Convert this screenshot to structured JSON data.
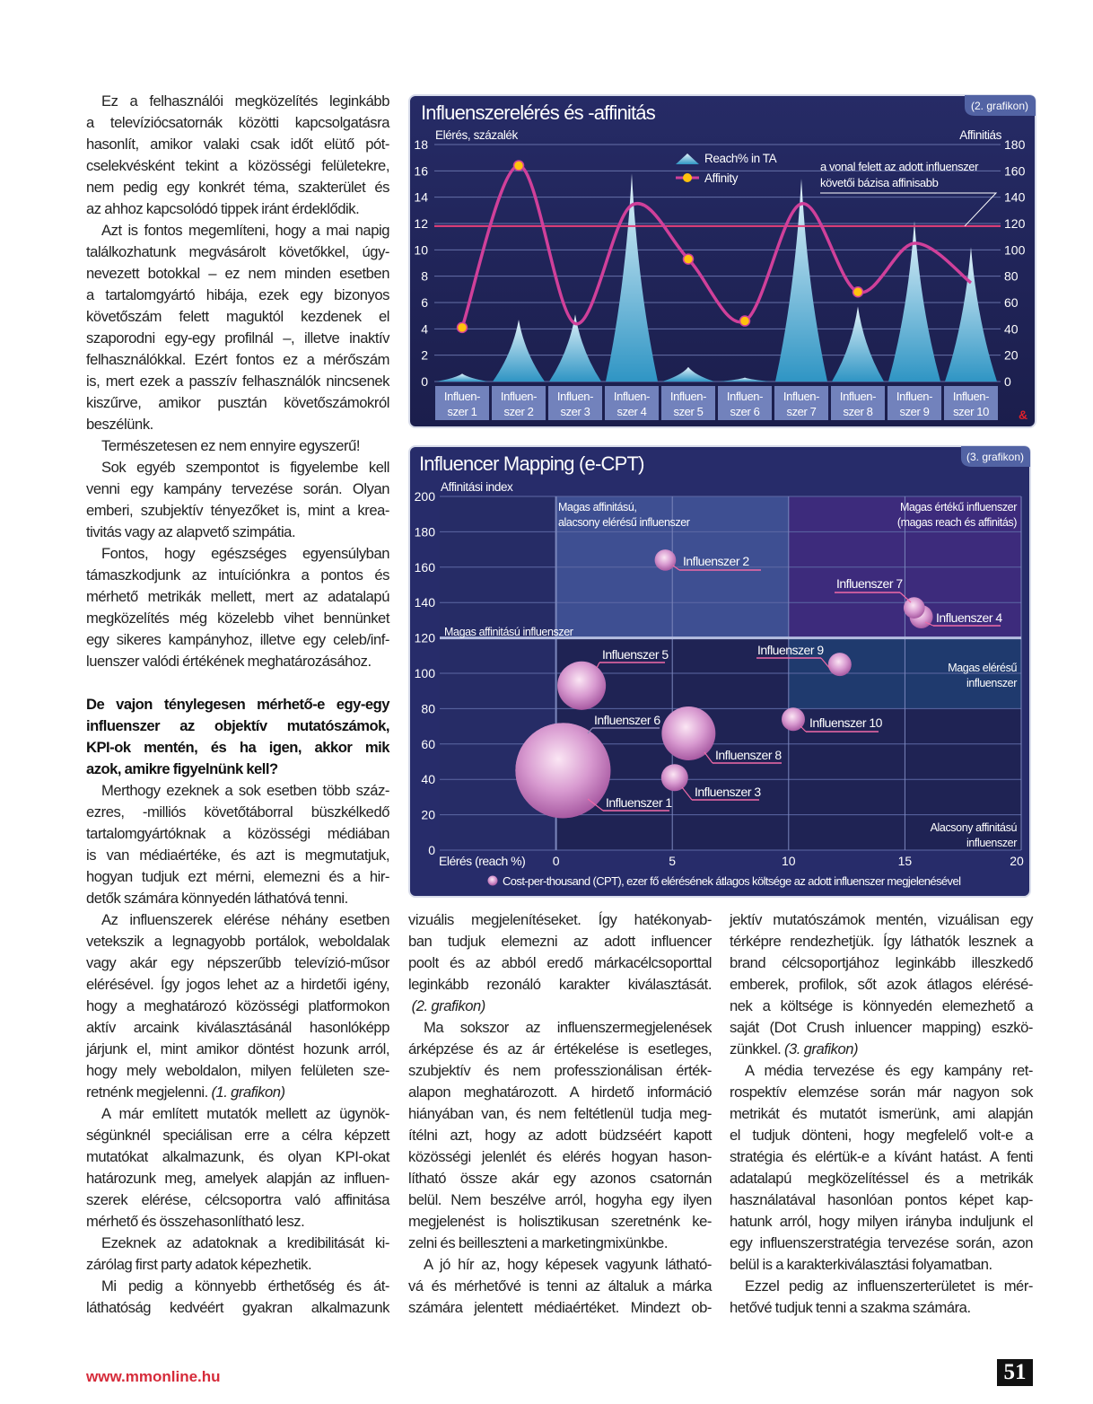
{
  "page": {
    "footer_url": "www.mmonline.hu",
    "page_number": "51",
    "accent_color": "#d62b3a"
  },
  "columns": {
    "left": [
      {
        "lines": [
          "Ez a felhasználói megközelítés leginkább",
          "a televíziócsatornák közötti kapcsolgatásra",
          "hasonlít, amikor valaki csak időt elütő pót-",
          "cselekvésként tekint a közösségi felületekre,",
          "nem pedig egy konkrét téma, szakterület és",
          "az ahhoz kapcsolódó tippek iránt érdeklődik."
        ]
      },
      {
        "lines": [
          "Azt is fontos megemlíteni, hogy a mai napig",
          "találkozhatunk megvásárolt követőkkel, úgy-",
          "nevezett botokkal – ez nem minden esetben",
          "a tartalomgyártó hibája, ezek egy bizonyos",
          "követőszám felett maguktól kezdenek el",
          "szaporodni egy-egy profilnál –, illetve inaktív",
          "felhasználókkal. Ezért fontos ez a mérőszám",
          "is, mert ezek a passzív felhasználók nincsenek",
          "kiszűrve, amikor pusztán követőszámokról",
          "beszélünk."
        ]
      },
      {
        "lines": [
          "Természetesen ez nem ennyire egyszerű!"
        ]
      },
      {
        "lines": [
          "Sok egyéb szempontot is figyelembe kell",
          "venni egy kampány tervezése során. Olyan",
          "emberi, szubjektív tényezőket is, mint a krea-",
          "tivitás vagy az alapvető szimpátia."
        ]
      },
      {
        "lines": [
          "Fontos, hogy egészséges egyensúlyban",
          "támaszkodjunk az intuíciónkra a pontos és",
          "mérhető metrikák mellett, mert az adatalapú",
          "megközelítés még közelebb vihet bennünket",
          "egy sikeres kampányhoz, illetve egy celeb/inf-",
          "luenszer valódi értékének meghatározásához."
        ]
      },
      {
        "style": "heading",
        "lines": [
          "De vajon ténylegesen mérhető-e egy-egy",
          "influenszer az objektív mutatószámok,",
          "KPI-ok mentén, és ha igen, akkor mik",
          "azok, amikre figyelnünk kell?"
        ]
      },
      {
        "lines": [
          "Merthogy ezeknek a sok esetben több száz-",
          "ezres, -milliós követőtáborral büszkélkedő",
          "tartalomgyártóknak a közösségi médiában",
          "is van médiaértéke, és azt is megmutatjuk,",
          "hogyan tudjuk ezt mérni, elemezni és a hir-",
          "detők számára könnyedén láthatóvá tenni."
        ]
      },
      {
        "lines": [
          "Az influenszerek elérése néhány esetben",
          "vetekszik a legnagyobb portálok, weboldalak",
          "vagy akár egy népszerűbb televízió-műsor",
          "elérésével. Így jogos lehet az a hirdetői igény,",
          "hogy a meghatározó közösségi platformokon",
          "aktív arcaink kiválasztásánál hasonlóképp",
          "járjunk el, mint amikor döntést hozunk arról,",
          "hogy mely weboldalon, milyen felületen sze-",
          "retnénk megjelenni. "
        ],
        "ref": "(1. grafikon)"
      },
      {
        "lines": [
          "A már említett mutatók mellett az ügynök-",
          "ségünknél speciálisan erre a célra képzett",
          "mutatókat alkalmazunk, és olyan KPI-okat",
          "határozunk meg, amelyek alapján az influen-",
          "szerek elérése, célcsoportra való affinitása",
          "mérhető és összehasonlítható lesz."
        ]
      },
      {
        "lines": [
          "Ezeknek az adatoknak a kredibilitását ki-",
          "zárólag first party adatok képezhetik."
        ]
      },
      {
        "lines": [
          "Mi pedig a könnyebb érthetőség és át-",
          "láthatóság kedvéért gyakran alkalmazunk"
        ],
        "cont": true
      }
    ],
    "middle": [
      {
        "noindent": true,
        "lines": [
          "vizuális megjelenítéseket. Így hatékonyab-",
          "ban tudjuk elemezni az adott influencer",
          "poolt és az abból eredő márkacélcsoporttal",
          "leginkább rezonáló karakter kiválasztását.",
          " "
        ],
        "ref": "(2. grafikon)"
      },
      {
        "lines": [
          "Ma sokszor az influenszermegjelenések",
          "árképzése és az ár értékelése is esetleges,",
          "szubjektív és nem professzionálisan érték-",
          "alapon meghatározott. A hirdető információ",
          "hiányában van, és nem feltétlenül tudja meg-",
          "ítélni azt, hogy az adott büdzséért kapott",
          "közösségi jelenlét és elérés hogyan hason-",
          "lítható össze akár egy azonos csatornán",
          "belül. Nem beszélve arról, hogyha egy ilyen",
          "megjelenést is holisztikusan szeretnénk ke-",
          "zelni és beilleszteni a marketingmixünkbe."
        ]
      },
      {
        "lines": [
          "A jó hír az, hogy képesek vagyunk látható-",
          "vá és mérhetővé is tenni az általuk a márka",
          "számára jelentett médiaértéket. Mindezt ob-"
        ],
        "cont": true
      }
    ],
    "right": [
      {
        "noindent": true,
        "lines": [
          "jektív mutatószámok mentén, vizuálisan egy",
          "térképre rendezhetjük. Így láthatók lesznek a",
          "brand célcsoportjához leginkább illeszkedő",
          "emberek, profilok, sőt azok átlagos elérésé-",
          "nek a költsége is könnyedén elemezhető a",
          "saját (Dot Crush inluencer mapping) eszkö-",
          "zünkkel. "
        ],
        "ref": "(3. grafikon)"
      },
      {
        "lines": [
          "A média tervezése és egy kampány ret-",
          "rospektív elemzése során már nagyon sok",
          "metrikát és mutatót ismerünk, ami alapján",
          "el tudjuk dönteni, hogy megfelelő volt-e a",
          "stratégia és elértük-e a kívánt hatást. A fenti",
          "adatalapú megközelítéssel és a metrikák",
          "használatával hasonlóan pontos képet kap-",
          "hatunk arról, hogy milyen irányba induljunk el",
          "egy influenszerstratégia tervezése során, azon",
          "belül is a karakterkiválasztási folyamatban."
        ]
      },
      {
        "lines": [
          "Ezzel pedig az influenszerterületet is mér-",
          "hetővé tudjuk tenni a szakma számára."
        ]
      }
    ]
  },
  "chart_data": [
    {
      "type": "bar",
      "title": "Influenszerelérés és -affinitás",
      "badge": "(2. grafikon)",
      "ylabel": "Elérés, százalék",
      "y2label": "Affinitiás",
      "ylim": [
        0,
        18
      ],
      "yticks": [
        0,
        2,
        4,
        6,
        8,
        10,
        12,
        14,
        16,
        18
      ],
      "y2lim": [
        0,
        180
      ],
      "y2ticks": [
        0,
        20,
        40,
        60,
        80,
        100,
        120,
        140,
        160,
        180
      ],
      "grid": true,
      "categories": [
        [
          "Influen-",
          "szer 1"
        ],
        [
          "Influen-",
          "szer 2"
        ],
        [
          "Influen-",
          "szer 3"
        ],
        [
          "Influen-",
          "szer 4"
        ],
        [
          "Influen-",
          "szer 5"
        ],
        [
          "Influen-",
          "szer 6"
        ],
        [
          "Influen-",
          "szer 7"
        ],
        [
          "Influen-",
          "szer 8"
        ],
        [
          "Influen-",
          "szer 9"
        ],
        [
          "Influen-",
          "szer 10"
        ]
      ],
      "series": [
        {
          "name": "Reach% in TA",
          "mark": "triangle",
          "axis": "y",
          "color": "#5ab4dc",
          "values": [
            0.6,
            4.7,
            5.1,
            15.8,
            1.1,
            0.3,
            15.4,
            5.7,
            12.2,
            10.2
          ]
        },
        {
          "name": "Affinity",
          "mark": "line",
          "axis": "y2",
          "color": "#d0409a",
          "marker_color": "#ffc20e",
          "values": [
            41,
            164,
            44,
            134,
            93,
            46,
            135,
            68,
            105,
            75
          ],
          "markers": [
            true,
            true,
            false,
            false,
            true,
            true,
            false,
            true,
            false,
            false
          ]
        }
      ],
      "reference_line": {
        "axis": "y2",
        "value": 118,
        "color": "#e8407a"
      },
      "annotation": [
        "a vonal felett az adott influenszer",
        "követői bázisa affinisabb"
      ],
      "legend": "top-center"
    },
    {
      "type": "scatter",
      "title": "Influencer Mapping (e-CPT)",
      "badge": "(3. grafikon)",
      "ylabel": "Affinitási index",
      "xlabel": "Elérés (reach %)",
      "xlim": [
        -5,
        20
      ],
      "xticks": [
        0,
        5,
        10,
        15,
        20
      ],
      "ylim": [
        0,
        200
      ],
      "yticks": [
        0,
        20,
        40,
        60,
        80,
        100,
        120,
        140,
        160,
        180,
        200
      ],
      "grid": true,
      "bubble_color": "#c070b8",
      "legend": "Cost-per-thousand (CPT), ezer fő elérésének átlagos költsége az adott influenszer megjelenésével",
      "points": [
        {
          "label": "Influenszer 1",
          "x": 0.3,
          "y": 45,
          "size": 100
        },
        {
          "label": "Influenszer 2",
          "x": 4.7,
          "y": 164,
          "size": 5
        },
        {
          "label": "Influenszer 3",
          "x": 5.1,
          "y": 41,
          "size": 8
        },
        {
          "label": "Influenszer 4",
          "x": 15.7,
          "y": 132,
          "size": 6
        },
        {
          "label": "Influenszer 5",
          "x": 1.1,
          "y": 93,
          "size": 26
        },
        {
          "label": "Influenszer 6",
          "x": 0.3,
          "y": 45,
          "size": 100
        },
        {
          "label": "Influenszer 7",
          "x": 15.4,
          "y": 137,
          "size": 5
        },
        {
          "label": "Influenszer 8",
          "x": 5.7,
          "y": 66,
          "size": 32
        },
        {
          "label": "Influenszer 9",
          "x": 12.2,
          "y": 105,
          "size": 6
        },
        {
          "label": "Influenszer 10",
          "x": 10.2,
          "y": 74,
          "size": 6
        }
      ],
      "quadrants": [
        {
          "lines": [
            "Magas affinitású,",
            "alacsony elérésű influenszer"
          ],
          "x": [
            0,
            10
          ],
          "y": [
            120,
            200
          ],
          "color": "#3e4f92"
        },
        {
          "lines": [
            "Magas értékű influenszer",
            "(magas reach és affinitás)"
          ],
          "x": [
            10,
            20
          ],
          "y": [
            120,
            200
          ],
          "color": "#3d2b7c"
        },
        {
          "lines": [
            "Magas elérésű",
            "influenszer"
          ],
          "x": [
            10,
            20
          ],
          "y": [
            80,
            120
          ],
          "color": "#1f3a6e"
        },
        {
          "lines": [
            "Alacsony affinitású",
            "influenszer"
          ]
        },
        {
          "lines": [
            "Magas affinitású influenszer"
          ]
        }
      ]
    }
  ]
}
